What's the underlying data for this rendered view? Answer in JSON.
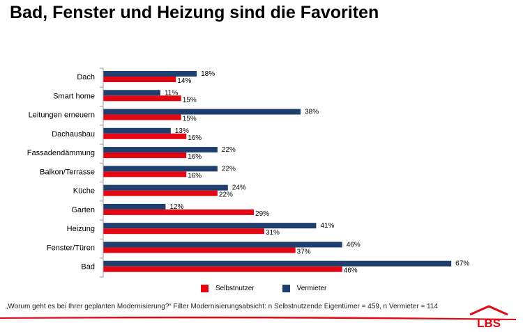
{
  "title": "Bad, Fenster und Heizung sind die Favoriten",
  "footnote": "„Worum geht es bei Ihrer geplanten Modernisierung?“ Filter Modernisierungsabsicht: n Selbstnutzende Eigentümer = 459, n Vermieter = 114",
  "logo_text": "LBS",
  "colors": {
    "selbstnutzer": "#e30613",
    "vermieter": "#1f3f6e",
    "brand": "#e30613"
  },
  "chart_data": {
    "type": "bar",
    "orientation": "horizontal",
    "categories": [
      "Dach",
      "Smart home",
      "Leitungen erneuern",
      "Dachausbau",
      "Fassadendämmung",
      "Balkon/Terrasse",
      "Küche",
      "Garten",
      "Heizung",
      "Fenster/Türen",
      "Bad"
    ],
    "series": [
      {
        "name": "Vermieter",
        "values": [
          18,
          11,
          38,
          13,
          22,
          22,
          24,
          12,
          41,
          46,
          67
        ],
        "labels": [
          "18%",
          "11%",
          "38%",
          "13%",
          "22%",
          "22%",
          "24%",
          "12%",
          "41%",
          "46%",
          "67%"
        ]
      },
      {
        "name": "Selbstnutzer",
        "values": [
          14,
          15,
          15,
          16,
          16,
          16,
          22,
          29,
          31,
          37,
          46
        ],
        "labels": [
          "14%",
          "15%",
          "15%",
          "16%",
          "16%",
          "16%",
          "22%",
          "29%",
          "31%",
          "37%",
          "46%"
        ]
      }
    ],
    "xlim": [
      0,
      70
    ],
    "legend_position": "bottom",
    "grid": false
  }
}
